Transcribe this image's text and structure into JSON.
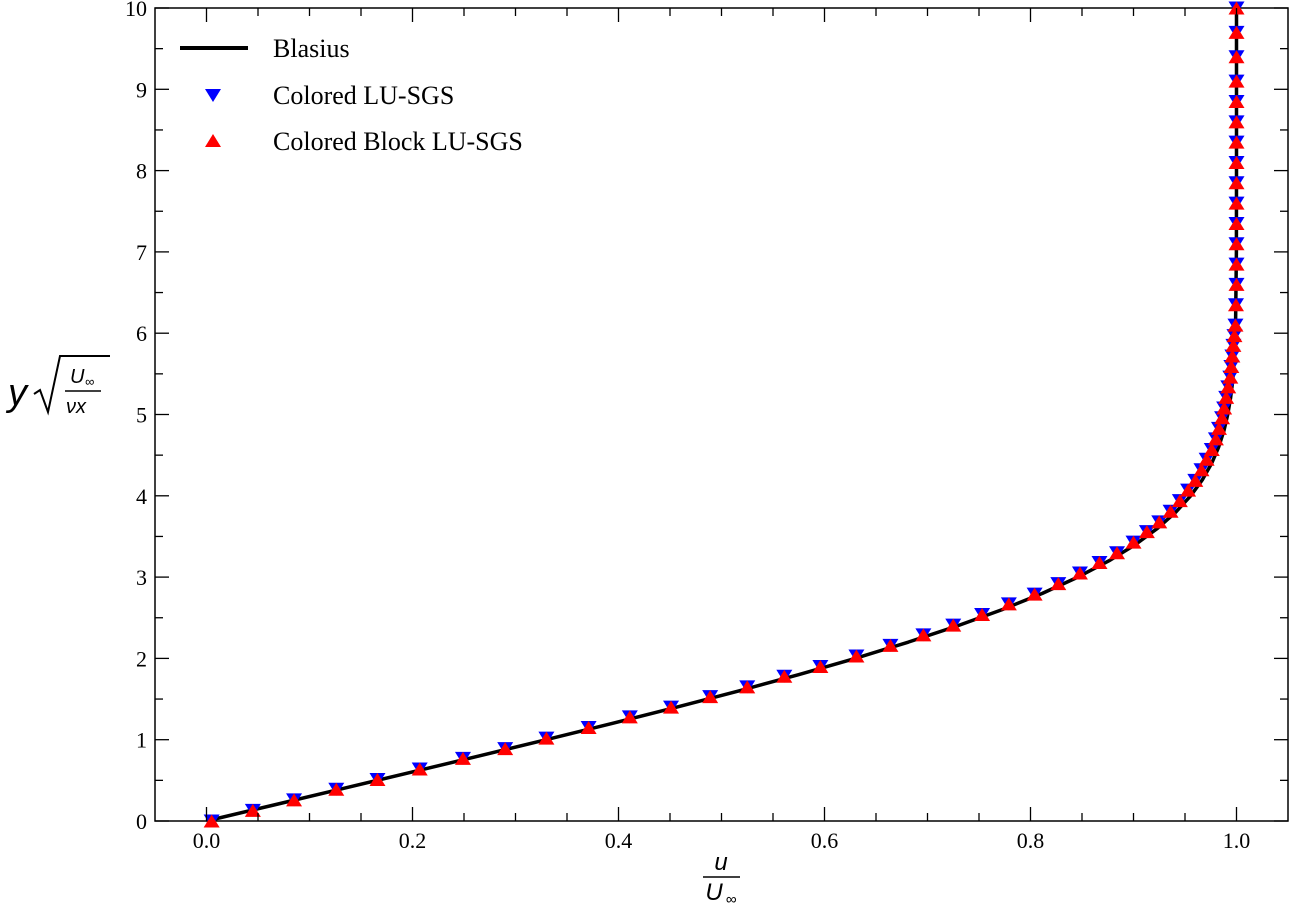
{
  "chart_data": {
    "type": "line",
    "xlim": [
      -0.05,
      1.05
    ],
    "ylim": [
      0,
      10
    ],
    "x_ticks": [
      "0.0",
      "0.2",
      "0.4",
      "0.6",
      "0.8",
      "1.0"
    ],
    "y_ticks": [
      "0",
      "1",
      "2",
      "3",
      "4",
      "5",
      "6",
      "7",
      "8",
      "9",
      "10"
    ],
    "x_label": {
      "numerator": "u",
      "denominator": "U",
      "denominator_sub": "∞"
    },
    "y_label": {
      "prefix": "y",
      "numerator": "U",
      "numerator_sub": "∞",
      "denominator": "νx"
    },
    "legend_position": "top-left",
    "grid": false,
    "series": [
      {
        "name": "Blasius",
        "style": "line",
        "color": "#000000",
        "x": [
          0.0,
          0.0664,
          0.1328,
          0.1989,
          0.2647,
          0.3298,
          0.3938,
          0.4563,
          0.5168,
          0.5748,
          0.6298,
          0.6813,
          0.729,
          0.7725,
          0.8115,
          0.846,
          0.8761,
          0.9018,
          0.9233,
          0.9411,
          0.9555,
          0.967,
          0.9759,
          0.9827,
          0.9878,
          0.9915,
          0.9942,
          0.9962,
          0.9975,
          0.9984,
          0.999,
          0.9999,
          1.0,
          1.0
        ],
        "y": [
          0.0,
          0.2,
          0.4,
          0.6,
          0.8,
          1.0,
          1.2,
          1.4,
          1.6,
          1.8,
          2.0,
          2.2,
          2.4,
          2.6,
          2.8,
          3.0,
          3.2,
          3.4,
          3.6,
          3.8,
          4.0,
          4.2,
          4.4,
          4.6,
          4.8,
          5.0,
          5.2,
          5.4,
          5.6,
          5.8,
          6.0,
          7.0,
          8.0,
          10.0
        ]
      },
      {
        "name": "Colored LU-SGS",
        "style": "marker-triangle-down",
        "color": "#0000ff",
        "x": [
          0.005,
          0.045,
          0.085,
          0.126,
          0.166,
          0.207,
          0.249,
          0.29,
          0.33,
          0.371,
          0.411,
          0.451,
          0.489,
          0.525,
          0.561,
          0.596,
          0.631,
          0.664,
          0.696,
          0.725,
          0.753,
          0.779,
          0.804,
          0.827,
          0.848,
          0.867,
          0.884,
          0.9,
          0.913,
          0.925,
          0.936,
          0.945,
          0.953,
          0.96,
          0.966,
          0.971,
          0.976,
          0.98,
          0.983,
          0.986,
          0.988,
          0.99,
          0.992,
          0.994,
          0.995,
          0.996,
          0.997,
          0.998,
          0.999,
          0.9995,
          1.0,
          1.0,
          1.0,
          1.0,
          1.0,
          1.0,
          1.0,
          1.0,
          1.0,
          1.0,
          1.0,
          1.0,
          1.0,
          1.0
        ],
        "y": [
          0.0,
          0.13,
          0.26,
          0.39,
          0.51,
          0.64,
          0.77,
          0.89,
          1.02,
          1.15,
          1.28,
          1.4,
          1.53,
          1.65,
          1.78,
          1.9,
          2.03,
          2.16,
          2.29,
          2.41,
          2.54,
          2.67,
          2.79,
          2.92,
          3.05,
          3.18,
          3.3,
          3.43,
          3.56,
          3.68,
          3.81,
          3.94,
          4.07,
          4.19,
          4.32,
          4.45,
          4.57,
          4.7,
          4.83,
          4.96,
          5.08,
          5.21,
          5.34,
          5.46,
          5.59,
          5.72,
          5.85,
          5.97,
          6.1,
          6.35,
          6.6,
          6.85,
          7.1,
          7.35,
          7.6,
          7.85,
          8.1,
          8.35,
          8.6,
          8.85,
          9.1,
          9.4,
          9.7,
          10.0
        ]
      },
      {
        "name": "Colored Block LU-SGS",
        "style": "marker-triangle-up",
        "color": "#ff0000",
        "x": [
          0.005,
          0.045,
          0.085,
          0.126,
          0.166,
          0.207,
          0.249,
          0.29,
          0.33,
          0.371,
          0.411,
          0.451,
          0.489,
          0.525,
          0.561,
          0.596,
          0.631,
          0.664,
          0.696,
          0.725,
          0.753,
          0.779,
          0.804,
          0.827,
          0.848,
          0.867,
          0.884,
          0.9,
          0.913,
          0.925,
          0.936,
          0.945,
          0.953,
          0.96,
          0.966,
          0.971,
          0.976,
          0.98,
          0.983,
          0.986,
          0.988,
          0.99,
          0.992,
          0.994,
          0.995,
          0.996,
          0.997,
          0.998,
          0.999,
          0.9995,
          1.0,
          1.0,
          1.0,
          1.0,
          1.0,
          1.0,
          1.0,
          1.0,
          1.0,
          1.0,
          1.0,
          1.0,
          1.0,
          1.0
        ],
        "y": [
          0.0,
          0.13,
          0.26,
          0.39,
          0.51,
          0.64,
          0.77,
          0.89,
          1.02,
          1.15,
          1.28,
          1.4,
          1.53,
          1.65,
          1.78,
          1.9,
          2.03,
          2.16,
          2.29,
          2.41,
          2.54,
          2.67,
          2.79,
          2.92,
          3.05,
          3.18,
          3.3,
          3.43,
          3.56,
          3.68,
          3.81,
          3.94,
          4.07,
          4.19,
          4.32,
          4.45,
          4.57,
          4.7,
          4.83,
          4.96,
          5.08,
          5.21,
          5.34,
          5.46,
          5.59,
          5.72,
          5.85,
          5.97,
          6.1,
          6.35,
          6.6,
          6.85,
          7.1,
          7.35,
          7.6,
          7.85,
          8.1,
          8.35,
          8.6,
          8.85,
          9.1,
          9.4,
          9.7,
          10.0
        ]
      }
    ]
  }
}
